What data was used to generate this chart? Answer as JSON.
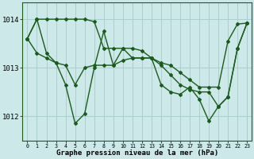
{
  "xlabel": "Graphe pression niveau de la mer (hPa)",
  "bg_color": "#cce8e8",
  "line_color": "#1a5c1a",
  "grid_color": "#aacfcf",
  "border_color": "#1a5c1a",
  "x": [
    0,
    1,
    2,
    3,
    4,
    5,
    6,
    7,
    8,
    9,
    10,
    11,
    12,
    13,
    14,
    15,
    16,
    17,
    18,
    19,
    20,
    21,
    22,
    23
  ],
  "series1": [
    1013.6,
    1014.0,
    1014.0,
    1014.0,
    1014.0,
    1014.0,
    1014.0,
    1013.95,
    1013.4,
    1013.4,
    1013.4,
    1013.4,
    1013.35,
    1013.2,
    1013.1,
    1013.05,
    1012.9,
    1012.75,
    1012.6,
    1012.6,
    1012.6,
    1013.55,
    1013.9,
    1013.92
  ],
  "series2": [
    1013.6,
    1013.3,
    1013.2,
    1013.1,
    1013.05,
    1012.65,
    1013.0,
    1013.05,
    1013.05,
    1013.05,
    1013.15,
    1013.2,
    1013.2,
    1013.2,
    1013.05,
    1012.85,
    1012.65,
    1012.55,
    1012.5,
    1012.5,
    1012.2,
    1012.4,
    1013.4,
    1013.92
  ],
  "series3": [
    1013.6,
    1014.0,
    1013.3,
    1013.1,
    1012.65,
    1011.85,
    1012.05,
    1013.0,
    1013.75,
    1013.05,
    1013.4,
    1013.2,
    1013.2,
    1013.2,
    1012.65,
    1012.5,
    1012.45,
    1012.6,
    1012.35,
    1011.9,
    1012.2,
    1012.4,
    1013.4,
    1013.92
  ],
  "ylim": [
    1011.5,
    1014.35
  ],
  "yticks": [
    1012,
    1013,
    1014
  ],
  "xticks": [
    0,
    1,
    2,
    3,
    4,
    5,
    6,
    7,
    8,
    9,
    10,
    11,
    12,
    13,
    14,
    15,
    16,
    17,
    18,
    19,
    20,
    21,
    22,
    23
  ]
}
